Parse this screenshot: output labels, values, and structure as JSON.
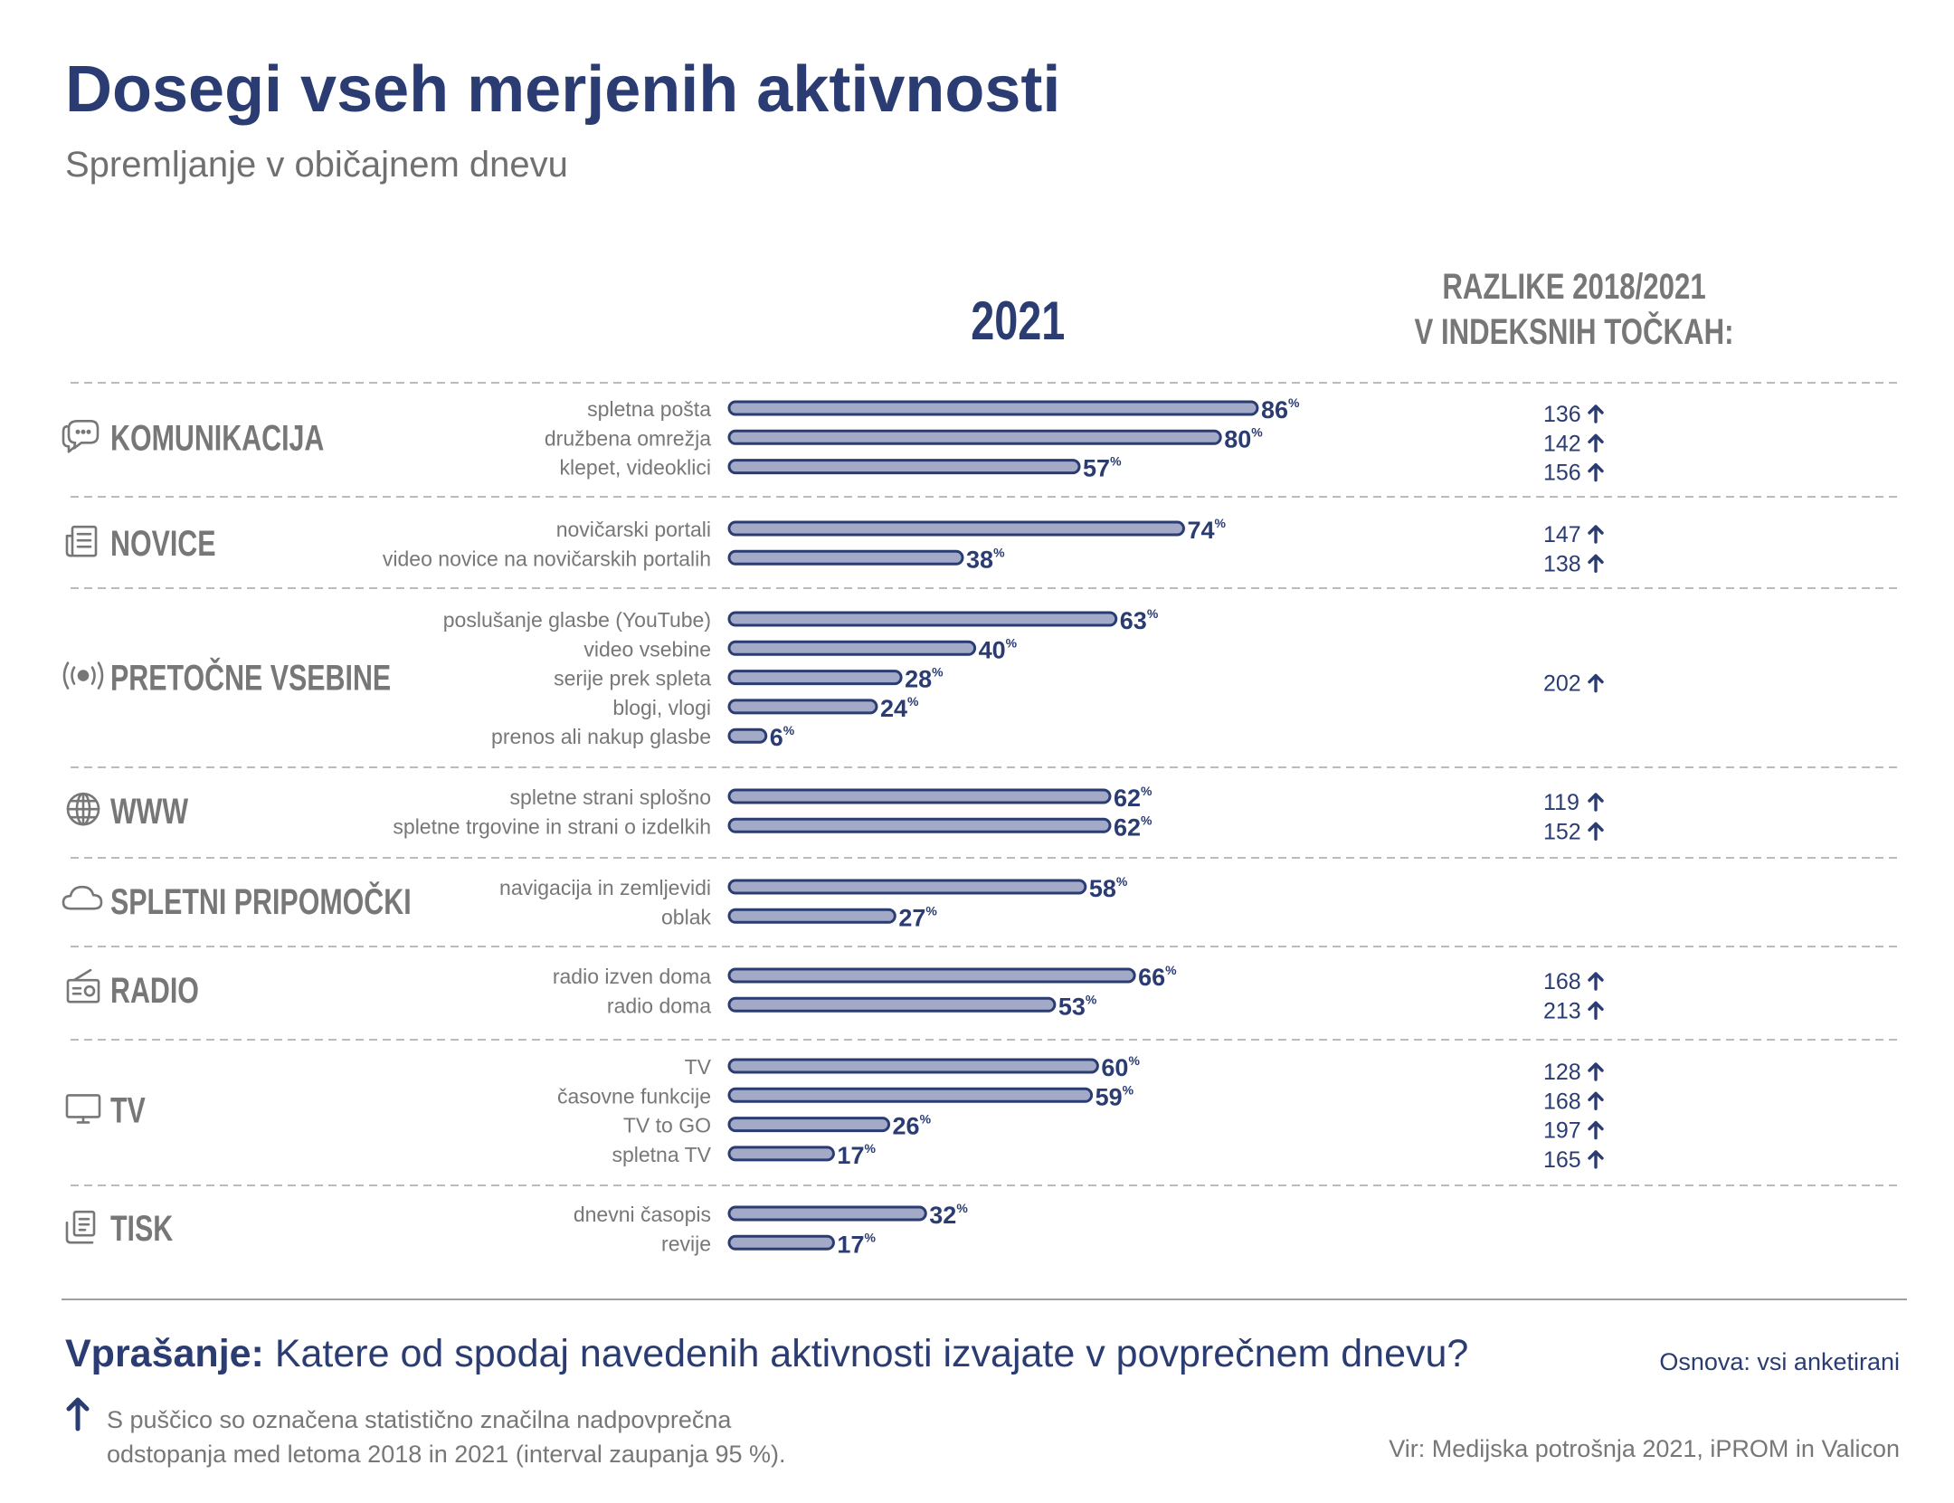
{
  "title": "Dosegi vseh merjenih aktivnosti",
  "subtitle": "Spremljanje v običajnem dnevu",
  "chart_data": {
    "type": "bar",
    "orientation": "horizontal",
    "year_label": "2021",
    "diff_header_line1": "RAZLIKE 2018/2021",
    "diff_header_line2": "V INDEKSNIH TOČKAH:",
    "value_suffix": "%",
    "xlim": [
      0,
      100
    ],
    "colors": {
      "bar_fill": "#a2aac7",
      "bar_stroke": "#2a3c72",
      "text": "#2a3c72",
      "category": "#777777"
    },
    "groups": [
      {
        "name": "KOMUNIKACIJA",
        "icon": "chat-icon",
        "items": [
          {
            "label": "spletna pošta",
            "value": 86,
            "index": "136"
          },
          {
            "label": "družbena omrežja",
            "value": 80,
            "index": "142"
          },
          {
            "label": "klepet, videoklici",
            "value": 57,
            "index": "156"
          }
        ]
      },
      {
        "name": "NOVICE",
        "icon": "newspaper-icon",
        "items": [
          {
            "label": "novičarski portali",
            "value": 74,
            "index": "147"
          },
          {
            "label": "video novice na novičarskih portalih",
            "value": 38,
            "index": "138"
          }
        ]
      },
      {
        "name": "PRETOČNE VSEBINE",
        "icon": "broadcast-icon",
        "group_index": "202",
        "items": [
          {
            "label": "poslušanje glasbe (YouTube)",
            "value": 63
          },
          {
            "label": "video vsebine",
            "value": 40
          },
          {
            "label": "serije prek spleta",
            "value": 28
          },
          {
            "label": "blogi, vlogi",
            "value": 24
          },
          {
            "label": "prenos ali nakup glasbe",
            "value": 6
          }
        ]
      },
      {
        "name": "WWW",
        "icon": "globe-icon",
        "items": [
          {
            "label": "spletne strani splošno",
            "value": 62,
            "index": "119"
          },
          {
            "label": "spletne trgovine in strani o izdelkih",
            "value": 62,
            "index": "152"
          }
        ]
      },
      {
        "name": "SPLETNI PRIPOMOČKI",
        "icon": "cloud-icon",
        "items": [
          {
            "label": "navigacija in zemljevidi",
            "value": 58
          },
          {
            "label": "oblak",
            "value": 27
          }
        ]
      },
      {
        "name": "RADIO",
        "icon": "radio-icon",
        "items": [
          {
            "label": "radio izven doma",
            "value": 66,
            "index": "168"
          },
          {
            "label": "radio doma",
            "value": 53,
            "index": "213"
          }
        ]
      },
      {
        "name": "TV",
        "icon": "tv-icon",
        "items": [
          {
            "label": "TV",
            "value": 60,
            "index": "128"
          },
          {
            "label": "časovne funkcije",
            "value": 59,
            "index": "168"
          },
          {
            "label": "TV to GO",
            "value": 26,
            "index": "197"
          },
          {
            "label": "spletna TV",
            "value": 17,
            "index": "165"
          }
        ]
      },
      {
        "name": "TISK",
        "icon": "print-icon",
        "items": [
          {
            "label": "dnevni časopis",
            "value": 32
          },
          {
            "label": "revije",
            "value": 17
          }
        ]
      }
    ]
  },
  "footer": {
    "question_label": "Vprašanje:",
    "question_text": "Katere od spodaj navedenih aktivnosti izvajate v povprečnem dnevu?",
    "base": "Osnova: vsi anketirani",
    "note_line1": "S puščico so označena statistično značilna nadpovprečna",
    "note_line2": "odstopanja med letoma 2018 in 2021 (interval zaupanja 95 %).",
    "source": "Vir: Medijska potrošnja 2021, iPROM in Valicon"
  }
}
